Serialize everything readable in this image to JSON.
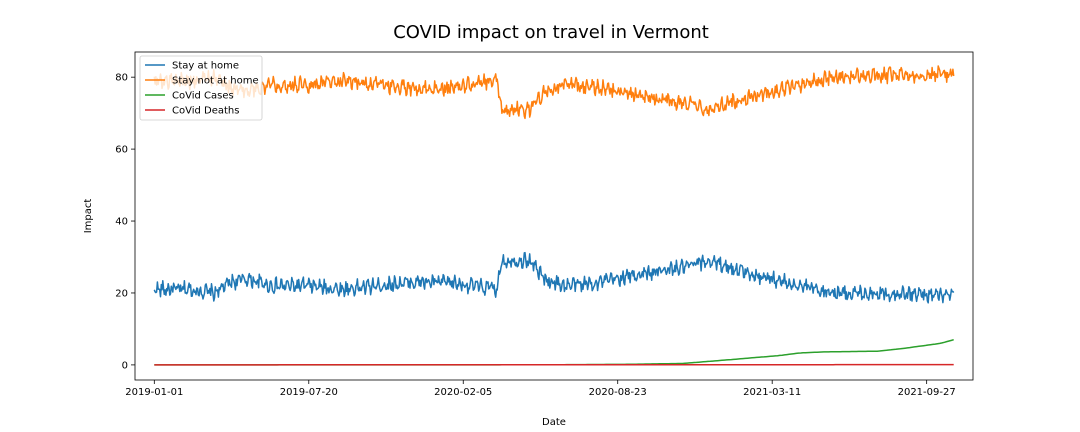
{
  "chart_data": {
    "type": "line",
    "title": "COVID impact on travel in Vermont",
    "xlabel": "Date",
    "ylabel": "Impact",
    "x_tick_labels": [
      "2019-01-01",
      "2019-07-20",
      "2020-02-05",
      "2020-08-23",
      "2021-03-11",
      "2021-09-27"
    ],
    "x_range": [
      "2018-12-07",
      "2021-11-26"
    ],
    "x_data_range": [
      "2019-01-01",
      "2021-11-01"
    ],
    "y_ticks": [
      0,
      20,
      40,
      60,
      80
    ],
    "ylim": [
      -4.2,
      87
    ],
    "grid": false,
    "legend_position": "upper-left",
    "series": [
      {
        "name": "Stay at home",
        "color": "#1f77b4",
        "points": [
          [
            "2019-01-01",
            21
          ],
          [
            "2019-02-15",
            21
          ],
          [
            "2019-03-20",
            20
          ],
          [
            "2019-04-10",
            23
          ],
          [
            "2019-05-01",
            24
          ],
          [
            "2019-06-01",
            22
          ],
          [
            "2019-07-20",
            22
          ],
          [
            "2019-09-01",
            21
          ],
          [
            "2019-10-15",
            22
          ],
          [
            "2019-12-01",
            23
          ],
          [
            "2020-01-15",
            23
          ],
          [
            "2020-02-20",
            22
          ],
          [
            "2020-03-20",
            21
          ],
          [
            "2020-03-25",
            29
          ],
          [
            "2020-05-01",
            29
          ],
          [
            "2020-05-20",
            24
          ],
          [
            "2020-06-15",
            22
          ],
          [
            "2020-08-01",
            23
          ],
          [
            "2020-09-15",
            25
          ],
          [
            "2020-11-15",
            27
          ],
          [
            "2020-12-20",
            29
          ],
          [
            "2021-02-01",
            26
          ],
          [
            "2021-04-15",
            22
          ],
          [
            "2021-06-01",
            20
          ],
          [
            "2021-08-01",
            20
          ],
          [
            "2021-10-01",
            19.5
          ],
          [
            "2021-11-01",
            19
          ]
        ]
      },
      {
        "name": "Stay not at home",
        "color": "#ff7f0e",
        "points": [
          [
            "2019-01-01",
            79
          ],
          [
            "2019-02-15",
            79
          ],
          [
            "2019-03-20",
            80
          ],
          [
            "2019-04-10",
            77
          ],
          [
            "2019-05-01",
            76
          ],
          [
            "2019-06-01",
            78
          ],
          [
            "2019-07-20",
            78
          ],
          [
            "2019-09-01",
            79
          ],
          [
            "2019-10-15",
            78
          ],
          [
            "2019-12-01",
            77
          ],
          [
            "2020-01-15",
            77
          ],
          [
            "2020-02-20",
            78
          ],
          [
            "2020-03-20",
            79
          ],
          [
            "2020-03-25",
            71
          ],
          [
            "2020-05-01",
            71
          ],
          [
            "2020-05-20",
            76
          ],
          [
            "2020-06-15",
            78
          ],
          [
            "2020-08-01",
            77
          ],
          [
            "2020-09-15",
            75
          ],
          [
            "2020-11-15",
            73
          ],
          [
            "2020-12-20",
            71
          ],
          [
            "2021-02-01",
            74
          ],
          [
            "2021-04-15",
            78
          ],
          [
            "2021-06-01",
            80
          ],
          [
            "2021-08-01",
            80.5
          ],
          [
            "2021-10-01",
            80.8
          ],
          [
            "2021-11-01",
            81
          ]
        ]
      },
      {
        "name": "CoVid Cases",
        "color": "#2ca02c",
        "points": [
          [
            "2019-01-01",
            0
          ],
          [
            "2020-03-01",
            0
          ],
          [
            "2020-06-01",
            0.05
          ],
          [
            "2020-09-01",
            0.15
          ],
          [
            "2020-11-15",
            0.4
          ],
          [
            "2021-01-01",
            1.2
          ],
          [
            "2021-02-15",
            2.0
          ],
          [
            "2021-03-20",
            2.6
          ],
          [
            "2021-04-15",
            3.3
          ],
          [
            "2021-05-15",
            3.6
          ],
          [
            "2021-06-15",
            3.7
          ],
          [
            "2021-07-25",
            3.8
          ],
          [
            "2021-08-25",
            4.5
          ],
          [
            "2021-09-25",
            5.4
          ],
          [
            "2021-10-15",
            6.0
          ],
          [
            "2021-11-01",
            7.0
          ]
        ]
      },
      {
        "name": "CoVid Deaths",
        "color": "#d62728",
        "points": [
          [
            "2019-01-01",
            0
          ],
          [
            "2021-11-01",
            0.08
          ]
        ]
      }
    ]
  }
}
